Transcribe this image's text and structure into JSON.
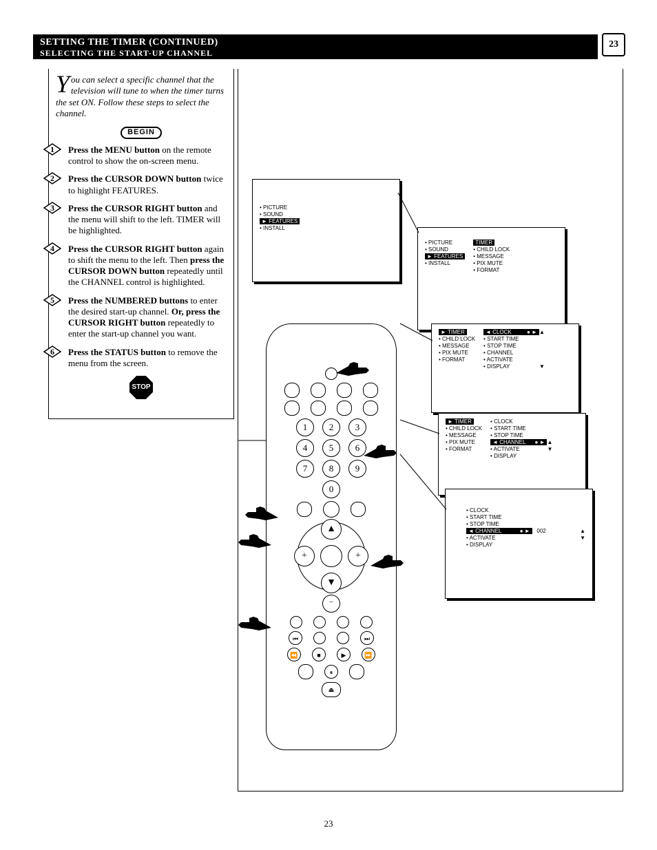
{
  "header": {
    "line1": "SETTING THE TIMER (CONTINUED)",
    "line2": "SELECTING THE START-UP CHANNEL",
    "page_number": "23"
  },
  "intro": {
    "dropcap": "Y",
    "text": "ou can select a specific channel that the television will tune to when the timer turns the set ON. Follow these steps to select the channel."
  },
  "begin_label": "BEGIN",
  "stop_label": "STOP",
  "steps": [
    {
      "n": "1",
      "bold": "Press the MENU button",
      "rest": " on the remote control to show the on-screen menu."
    },
    {
      "n": "2",
      "bold": "Press the CURSOR DOWN button",
      "rest": " twice to highlight FEATURES."
    },
    {
      "n": "3",
      "bold": "Press the CURSOR RIGHT button",
      "rest": " and the menu will shift to the left. TIMER will be highlighted."
    },
    {
      "n": "4",
      "bold": "Press the CURSOR RIGHT button",
      "rest": " again to shift the menu to the left. Then ",
      "bold2": "press the CURSOR DOWN button",
      "rest2": " repeatedly until the CHANNEL control is highlighted."
    },
    {
      "n": "5",
      "bold": "Press the NUMBERED buttons",
      "rest": " to enter the desired start-up channel.   ",
      "bold2": "Or, press the CURSOR RIGHT button",
      "rest2": " repeatedly to enter the start-up channel you want."
    },
    {
      "n": "6",
      "bold": "Press the STATUS button",
      "rest": " to remove the menu from the screen."
    }
  ],
  "screens": {
    "s1": {
      "items": [
        "PICTURE",
        "SOUND",
        "FEATURES"
      ],
      "hl_index": 2,
      "extra": [
        "INSTALL"
      ]
    },
    "s2": {
      "left_items": [
        "PICTURE",
        "SOUND",
        "FEATURES",
        "INSTALL"
      ],
      "hl": "TIMER",
      "right_items": [
        "CHILD LOCK",
        "MESSAGE",
        "PIX MUTE",
        "FORMAT"
      ]
    },
    "s3": {
      "left_items": [
        "TIMER",
        "CHILD LOCK",
        "MESSAGE",
        "PIX MUTE",
        "FORMAT"
      ],
      "hl": "CLOCK",
      "hl_right": "● ►",
      "right_items": [
        "START TIME",
        "STOP TIME",
        "CHANNEL",
        "ACTIVATE",
        "DISPLAY"
      ]
    },
    "s4": {
      "left_items": [
        "TIMER",
        "CHILD LOCK",
        "MESSAGE",
        "PIX MUTE",
        "FORMAT"
      ],
      "right_items": [
        "CLOCK",
        "START TIME",
        "STOP TIME"
      ],
      "hl": "CHANNEL",
      "hl_right": "● ►",
      "after": [
        "ACTIVATE",
        "DISPLAY"
      ]
    },
    "s5": {
      "left_items": [
        "CLOCK",
        "START TIME",
        "STOP TIME"
      ],
      "hl": "CHANNEL",
      "hl_right": "● ►",
      "right_value": "002",
      "after": [
        "ACTIVATE",
        "DISPLAY"
      ]
    }
  },
  "remote": {
    "top_label": "",
    "number_rows": [
      [
        "1",
        "2",
        "3"
      ],
      [
        "4",
        "5",
        "6"
      ],
      [
        "7",
        "8",
        "9"
      ],
      [
        "",
        "0",
        ""
      ]
    ],
    "plus": "+",
    "minus": "−"
  },
  "footer": "23",
  "colors": {
    "black": "#000000",
    "white": "#ffffff"
  }
}
